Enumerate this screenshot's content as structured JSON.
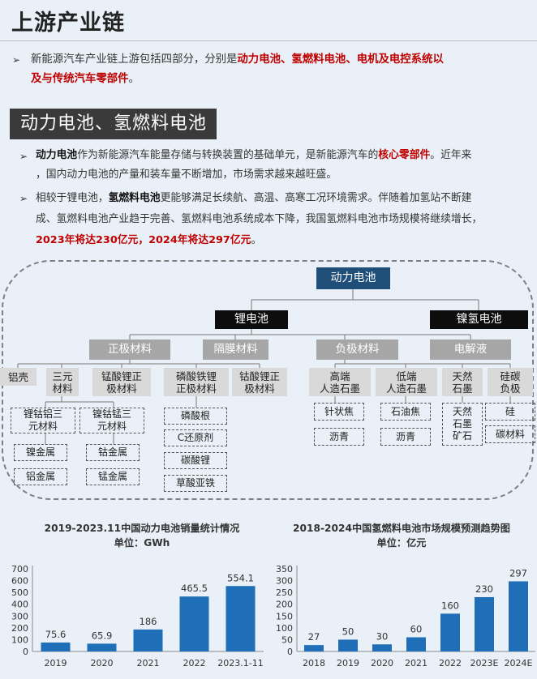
{
  "page": {
    "title": "上游产业链"
  },
  "intro": {
    "bullet": "➢",
    "lead": "新能源汽车产业链上游包括四部分，分别是",
    "highlight_1": "动力电池、氢燃料电池、电机及电控系统以",
    "highlight_2": "及与传统汽车零部件",
    "end": "。"
  },
  "section": {
    "heading": "动力电池、氢燃料电池"
  },
  "bullets": [
    {
      "bullet": "➢",
      "l1_bold": "动力电池",
      "l1_a": "作为新能源汽车能量存储与转换装置的基础单元，是新能源汽车的",
      "l1_red": "核心零部件",
      "l1_b": "。近年来",
      "l2": "，国内动力电池的产量和装车量不断增加，市场需求越来越旺盛。"
    },
    {
      "bullet": "➢",
      "l1_a": "相较于锂电池，",
      "l1_bold": "氢燃料电池",
      "l1_b": "更能够满足长续航、高温、高寒工况环境需求。伴随着加氢站不断建",
      "l2": "成、氢燃料电池产业趋于完善、氢燃料电池系统成本下降，我国氢燃料电池市场规模将继续增长，",
      "l3_red": "2023年将达230亿元，2024年将达297亿元",
      "l3_end": "。"
    }
  ],
  "tree": {
    "root": "动力电池",
    "lithium": "锂电池",
    "nimh": "镍氢电池",
    "cathode": "正极材料",
    "separator": "隔膜材料",
    "anode": "负极材料",
    "electrolyte": "电解液",
    "aluminum_shell": "铝壳",
    "ternary": [
      "三元",
      "材料"
    ],
    "lmo": [
      "锰酸锂正",
      "极材料"
    ],
    "lfp": [
      "磷酸铁锂",
      "正极材料"
    ],
    "lco": [
      "钴酸锂正",
      "极材料"
    ],
    "high_graphite": [
      "高端",
      "人造石墨"
    ],
    "low_graphite": [
      "低端",
      "人造石墨"
    ],
    "natural_graphite": [
      "天然",
      "石墨"
    ],
    "silicon_carbon": [
      "硅碳",
      "负极"
    ],
    "nca": [
      "锂钴铝三",
      "元材料"
    ],
    "ncm": [
      "镍钴锰三",
      "元材料"
    ],
    "nickel": "镍金属",
    "cobalt": "钴金属",
    "aluminum": "铝金属",
    "manganese": "锰金属",
    "phosphate_rock": "磷酸根",
    "c_reductant": "C还原剂",
    "lithium_carbonate": "碳酸锂",
    "ferrous_oxalate": "草酸亚铁",
    "needle_coke": "针状焦",
    "asphalt_1": "沥青",
    "petroleum_coke": "石油焦",
    "asphalt_2": "沥青",
    "natural_graphite_ore": [
      "天然",
      "石墨",
      "矿石"
    ],
    "silicon": "硅",
    "carbon_material": "碳材料"
  },
  "chart_data": [
    {
      "type": "bar",
      "title": "2019-2023.11中国动力电池销量统计情况",
      "subtitle": "单位：GWh",
      "categories": [
        "2019",
        "2020",
        "2021",
        "2022",
        "2023.1-11"
      ],
      "values": [
        75.6,
        65.9,
        186,
        465.5,
        554.1
      ],
      "value_labels": [
        "75.6",
        "65.9",
        "186",
        "465.5",
        "554.1"
      ],
      "ylim": [
        0,
        700
      ],
      "yticks": [
        "0",
        "100",
        "200",
        "300",
        "400",
        "500",
        "600",
        "700"
      ],
      "color": "#1f6fb8",
      "grid": false,
      "legend": "none"
    },
    {
      "type": "bar",
      "title": "2018-2024中国氢燃料电池市场规模预测趋势图",
      "subtitle": "单位：亿元",
      "categories": [
        "2018",
        "2019",
        "2020",
        "2021",
        "2022",
        "2023E",
        "2024E"
      ],
      "values": [
        27,
        50,
        30,
        60,
        160,
        230,
        297
      ],
      "value_labels": [
        "27",
        "50",
        "30",
        "60",
        "160",
        "230",
        "297"
      ],
      "ylim": [
        0,
        350
      ],
      "yticks": [
        "0",
        "50",
        "100",
        "150",
        "200",
        "250",
        "300",
        "350"
      ],
      "color": "#1f6fb8",
      "grid": false,
      "legend": "none"
    }
  ]
}
